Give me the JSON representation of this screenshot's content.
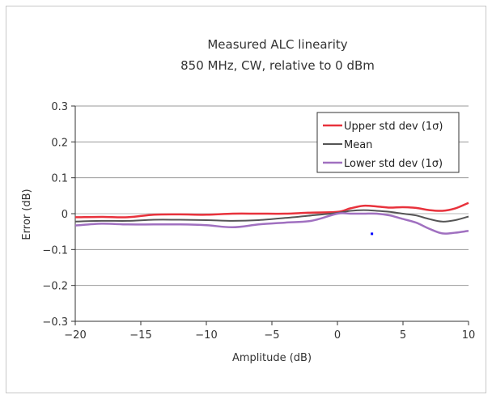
{
  "chart_data": {
    "type": "line",
    "title": "Measured  ALC linearity",
    "subtitle": "850 MHz, CW, relative  to 0 dBm",
    "xlabel": "Amplitude (dB)",
    "ylabel": "Error (dB)",
    "xlim": [
      -20,
      10
    ],
    "ylim": [
      -0.3,
      0.3
    ],
    "x_ticks": [
      -20,
      -15,
      -10,
      -5,
      0,
      5,
      10
    ],
    "x_tick_labels": [
      "−20",
      "−15",
      "−10",
      "−5",
      "0",
      "5",
      "10"
    ],
    "y_ticks": [
      0.3,
      0.2,
      0.1,
      0,
      -0.1,
      -0.2,
      -0.3
    ],
    "y_tick_labels": [
      "0.3",
      "0.2",
      "0.1",
      "0",
      "−0.1",
      "−0.2",
      "−0.3"
    ],
    "grid": "horizontal",
    "legend_position": "top-right",
    "series": [
      {
        "name": "Upper std dev (1σ)",
        "color": "#e8323c",
        "x": [
          -20,
          -18,
          -16,
          -14,
          -12,
          -10,
          -8,
          -6,
          -4,
          -2,
          0,
          1,
          2,
          3,
          4,
          5,
          6,
          7,
          8,
          9,
          10
        ],
        "values": [
          -0.01,
          -0.009,
          -0.01,
          -0.003,
          -0.002,
          -0.003,
          0.0,
          0.0,
          0.0,
          0.003,
          0.005,
          0.015,
          0.022,
          0.02,
          0.017,
          0.018,
          0.016,
          0.01,
          0.008,
          0.015,
          0.03
        ]
      },
      {
        "name": "Mean",
        "color": "#555555",
        "x": [
          -20,
          -18,
          -16,
          -14,
          -12,
          -10,
          -8,
          -6,
          -4,
          -2,
          0,
          1,
          2,
          3,
          4,
          5,
          6,
          7,
          8,
          9,
          10
        ],
        "values": [
          -0.022,
          -0.02,
          -0.02,
          -0.017,
          -0.017,
          -0.018,
          -0.02,
          -0.018,
          -0.012,
          -0.005,
          0.002,
          0.008,
          0.01,
          0.008,
          0.005,
          0.0,
          -0.005,
          -0.015,
          -0.022,
          -0.018,
          -0.008
        ]
      },
      {
        "name": "Lower std dev (1σ)",
        "color": "#a070c0",
        "x": [
          -20,
          -18,
          -16,
          -14,
          -12,
          -10,
          -8,
          -6,
          -4,
          -2,
          0,
          1,
          2,
          3,
          4,
          5,
          6,
          7,
          8,
          9,
          10
        ],
        "values": [
          -0.033,
          -0.028,
          -0.03,
          -0.03,
          -0.03,
          -0.032,
          -0.038,
          -0.03,
          -0.025,
          -0.02,
          0.0,
          0.0,
          0.0,
          0.0,
          -0.005,
          -0.015,
          -0.025,
          -0.042,
          -0.055,
          -0.053,
          -0.048
        ]
      }
    ],
    "stray_point": {
      "x": 2.6,
      "y": -0.055,
      "color": "#0000ff"
    }
  }
}
